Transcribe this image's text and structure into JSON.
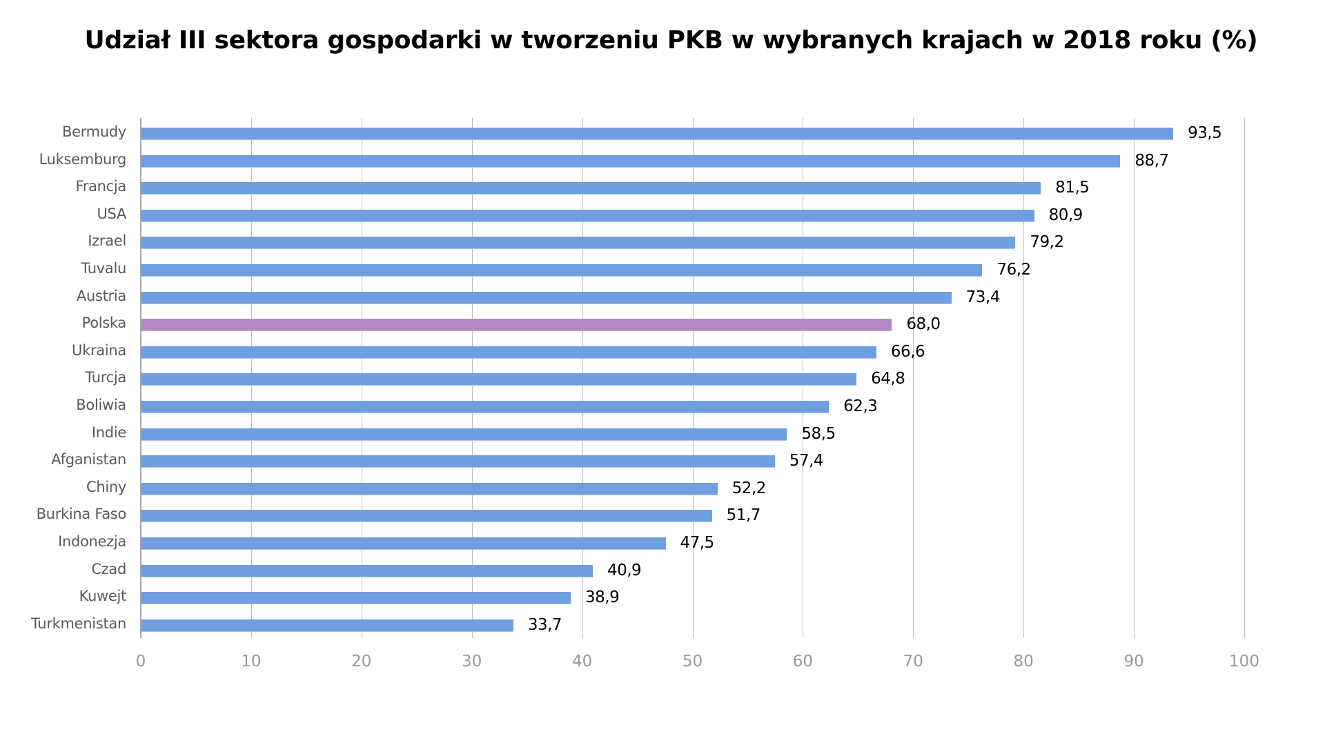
{
  "chart_data": {
    "type": "bar",
    "orientation": "horizontal",
    "title": "Udział III sektora gospodarki w tworzeniu PKB w wybranych krajach w 2018 roku (%)",
    "xlabel": "",
    "ylabel": "",
    "xlim": [
      0,
      100
    ],
    "grid": true,
    "legend": null,
    "x_ticks": [
      "0",
      "10",
      "20",
      "30",
      "40",
      "50",
      "60",
      "70",
      "80",
      "90",
      "100"
    ],
    "categories": [
      "Bermudy",
      "Luksemburg",
      "Francja",
      "USA",
      "Izrael",
      "Tuvalu",
      "Austria",
      "Polska",
      "Ukraina",
      "Turcja",
      "Boliwia",
      "Indie",
      "Afganistan",
      "Chiny",
      "Burkina Faso",
      "Indonezja",
      "Czad",
      "Kuwejt",
      "Turkmenistan"
    ],
    "values": [
      93.5,
      88.7,
      81.5,
      80.9,
      79.2,
      76.2,
      73.4,
      68.0,
      66.6,
      64.8,
      62.3,
      58.5,
      57.4,
      52.2,
      51.7,
      47.5,
      40.9,
      38.9,
      33.7
    ],
    "value_labels": [
      "93,5",
      "88,7",
      "81,5",
      "80,9",
      "79,2",
      "76,2",
      "73,4",
      "68,0",
      "66,6",
      "64,8",
      "62,3",
      "58,5",
      "57,4",
      "52,2",
      "51,7",
      "47,5",
      "40,9",
      "38,9",
      "33,7"
    ],
    "highlight": "Polska",
    "colors": {
      "default": "#709fe0",
      "highlight": "#b586c4"
    }
  }
}
